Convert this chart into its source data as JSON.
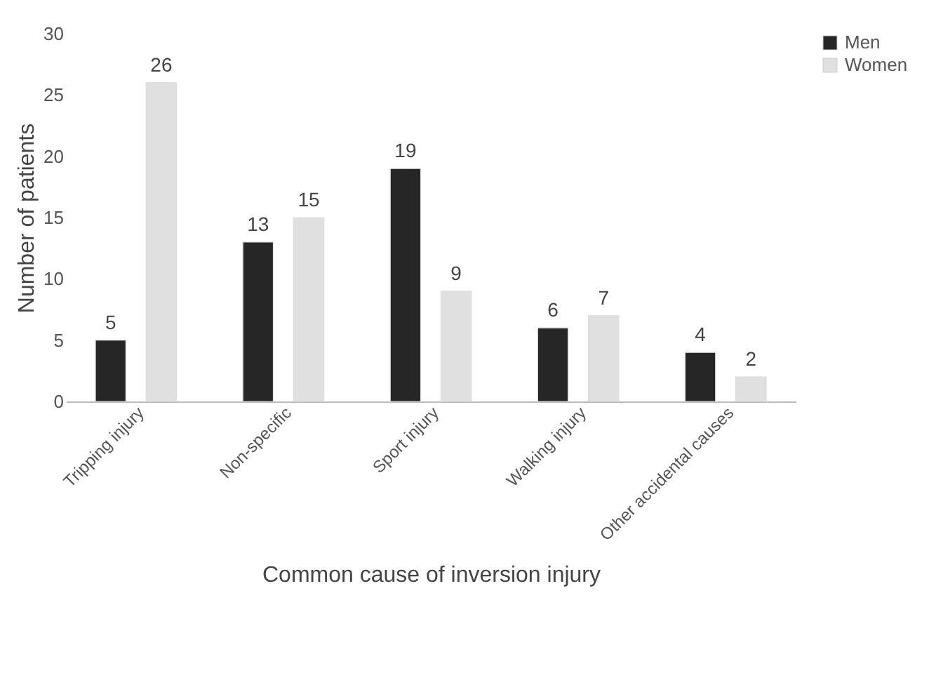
{
  "chart_data": {
    "type": "bar",
    "xlabel": "Common cause of inversion injury",
    "ylabel": "Number of patients",
    "categories": [
      "Tripping injury",
      "Non-specific",
      "Sport injury",
      "Walking injury",
      "Other accidental causes"
    ],
    "series": [
      {
        "name": "Men",
        "color": "#262626",
        "values": [
          5,
          13,
          19,
          6,
          4
        ]
      },
      {
        "name": "Women",
        "color": "#e0e0e0",
        "values": [
          26,
          15,
          9,
          7,
          2
        ]
      }
    ],
    "ylim": [
      0,
      30
    ],
    "yticks": [
      0,
      5,
      10,
      15,
      20,
      25,
      30
    ],
    "grid": false,
    "legend": "right",
    "data_labels": true
  }
}
